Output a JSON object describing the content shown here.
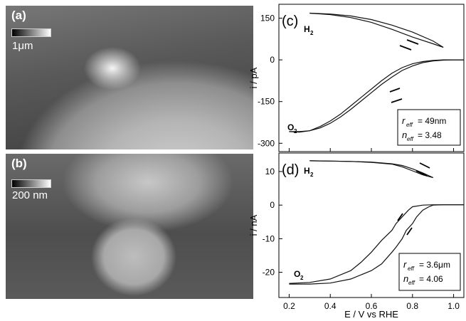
{
  "panels": {
    "a": {
      "label": "(a)",
      "scale_text": "1μm"
    },
    "b": {
      "label": "(b)",
      "scale_text": "200 nm"
    }
  },
  "chart_data": [
    {
      "type": "line",
      "panel_label": "(c)",
      "ylabel": "i / pA",
      "y_ticks": [
        150,
        0,
        -150,
        -300
      ],
      "ylim": [
        -330,
        200
      ],
      "xlim": [
        0.15,
        1.05
      ],
      "annotations": [
        "H",
        "2",
        "O",
        "2"
      ],
      "legend": {
        "r_label": "r",
        "r_sub": "eff",
        "r_value": "= 49nm",
        "n_label": "n",
        "n_sub": "eff",
        "n_value": "= 3.48"
      },
      "series": [
        {
          "x": [
            0.3,
            0.4,
            0.5,
            0.6,
            0.7,
            0.8,
            0.9,
            0.95
          ],
          "y": [
            168,
            165,
            158,
            145,
            125,
            100,
            68,
            45
          ]
        },
        {
          "x": [
            0.95,
            0.9,
            0.8,
            0.7,
            0.6,
            0.5,
            0.4,
            0.3
          ],
          "y": [
            45,
            58,
            82,
            110,
            135,
            152,
            163,
            168
          ]
        },
        {
          "x": [
            0.2,
            0.25,
            0.3,
            0.35,
            0.4,
            0.45,
            0.5,
            0.55,
            0.6,
            0.65,
            0.7,
            0.75,
            0.8,
            0.85,
            0.9,
            0.95,
            1.0,
            1.05
          ],
          "y": [
            -258,
            -260,
            -255,
            -240,
            -220,
            -195,
            -165,
            -135,
            -105,
            -75,
            -48,
            -28,
            -14,
            -6,
            -2,
            0,
            0,
            0
          ]
        },
        {
          "x": [
            1.05,
            1.0,
            0.95,
            0.9,
            0.85,
            0.8,
            0.75,
            0.7,
            0.65,
            0.6,
            0.55,
            0.5,
            0.45,
            0.4,
            0.35,
            0.3,
            0.25,
            0.2
          ],
          "y": [
            0,
            0,
            -1,
            -4,
            -10,
            -22,
            -38,
            -62,
            -88,
            -118,
            -148,
            -178,
            -205,
            -228,
            -245,
            -255,
            -258,
            -258
          ]
        }
      ]
    },
    {
      "type": "line",
      "panel_label": "(d)",
      "ylabel": "i / nA",
      "xlabel": "E / V vs RHE",
      "x_ticks": [
        0.2,
        0.4,
        0.6,
        0.8,
        1.0
      ],
      "x_tick_labels": [
        "0.2",
        "0.4",
        "0.6",
        "0.8",
        "1.0"
      ],
      "y_ticks": [
        10,
        0,
        -10,
        -20
      ],
      "ylim": [
        -27.5,
        15.5
      ],
      "xlim": [
        0.15,
        1.05
      ],
      "annotations": [
        "H",
        "2",
        "O",
        "2"
      ],
      "legend": {
        "r_label": "r",
        "r_sub": "eff",
        "r_value": "= 3.6μm",
        "n_label": "n",
        "n_sub": "eff",
        "n_value": "= 4.06"
      },
      "series": [
        {
          "x": [
            0.3,
            0.4,
            0.5,
            0.6,
            0.7,
            0.75,
            0.8,
            0.85,
            0.9
          ],
          "y": [
            13.2,
            13.1,
            13.0,
            12.8,
            12.3,
            11.8,
            10.8,
            9.6,
            8.2
          ]
        },
        {
          "x": [
            0.9,
            0.85,
            0.8,
            0.75,
            0.7,
            0.6,
            0.5,
            0.4,
            0.3
          ],
          "y": [
            8.2,
            9.0,
            10.2,
            11.4,
            12.2,
            12.7,
            13.0,
            13.1,
            13.2
          ]
        },
        {
          "x": [
            0.2,
            0.3,
            0.4,
            0.5,
            0.55,
            0.6,
            0.65,
            0.7,
            0.72,
            0.75,
            0.78,
            0.8,
            0.85,
            0.9,
            0.95,
            1.0,
            1.05
          ],
          "y": [
            -23.3,
            -23.0,
            -22.0,
            -19.5,
            -17.0,
            -14.0,
            -10.5,
            -7.5,
            -5.5,
            -3.5,
            -1.5,
            -0.5,
            0,
            0.1,
            0.1,
            0.1,
            0.1
          ]
        },
        {
          "x": [
            1.05,
            1.0,
            0.95,
            0.9,
            0.88,
            0.85,
            0.82,
            0.8,
            0.77,
            0.75,
            0.72,
            0.7,
            0.65,
            0.6,
            0.5,
            0.4,
            0.3,
            0.2
          ],
          "y": [
            0.1,
            0.1,
            0.1,
            0,
            -0.5,
            -1.5,
            -3.5,
            -5.5,
            -7.5,
            -10.0,
            -12.5,
            -14.0,
            -17.5,
            -19.5,
            -22.0,
            -23.2,
            -23.5,
            -23.5
          ]
        }
      ]
    }
  ]
}
